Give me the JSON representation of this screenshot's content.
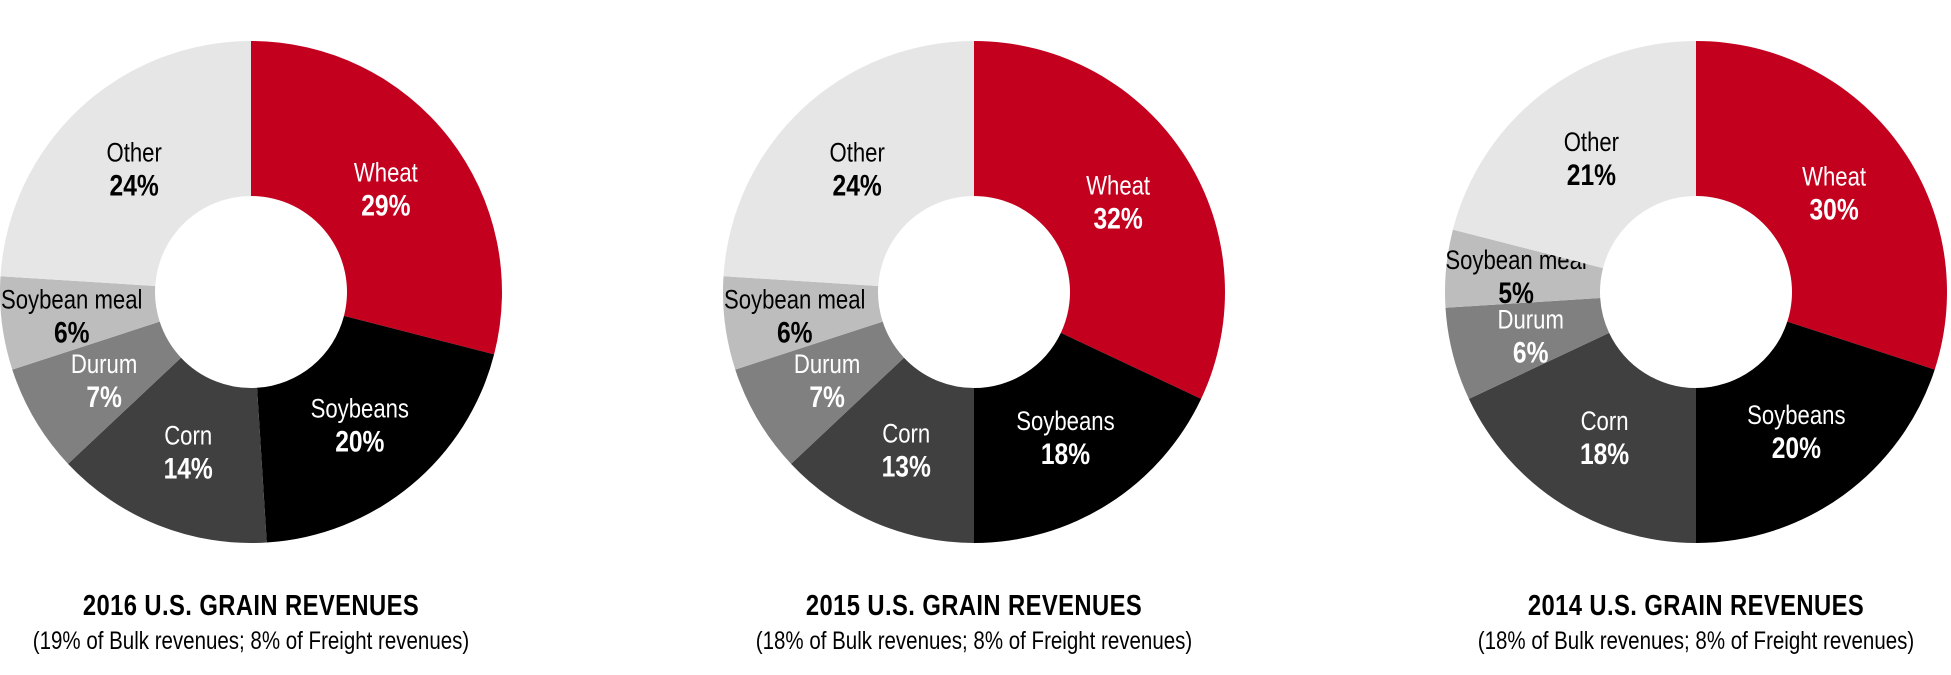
{
  "chart_data": [
    {
      "type": "pie",
      "donut": true,
      "title": "2016 U.S. GRAIN REVENUES",
      "subtitle": "(19% of Bulk revenues; 8% of Freight revenues)",
      "categories": [
        "Wheat",
        "Soybeans",
        "Corn",
        "Durum",
        "Soybean meal",
        "Other"
      ],
      "values": [
        29,
        20,
        14,
        7,
        6,
        24
      ],
      "labels": [
        "29%",
        "20%",
        "14%",
        "7%",
        "6%",
        "24%"
      ]
    },
    {
      "type": "pie",
      "donut": true,
      "title": "2015 U.S. GRAIN REVENUES",
      "subtitle": "(18% of Bulk revenues; 8% of Freight revenues)",
      "categories": [
        "Wheat",
        "Soybeans",
        "Corn",
        "Durum",
        "Soybean meal",
        "Other"
      ],
      "values": [
        32,
        18,
        13,
        7,
        6,
        24
      ],
      "labels": [
        "32%",
        "18%",
        "13%",
        "7%",
        "6%",
        "24%"
      ]
    },
    {
      "type": "pie",
      "donut": true,
      "title": "2014 U.S. GRAIN REVENUES",
      "subtitle": "(18% of Bulk revenues; 8% of Freight revenues)",
      "categories": [
        "Wheat",
        "Soybeans",
        "Corn",
        "Durum",
        "Soybean meal",
        "Other"
      ],
      "values": [
        30,
        20,
        18,
        6,
        5,
        21
      ],
      "labels": [
        "30%",
        "20%",
        "18%",
        "6%",
        "5%",
        "21%"
      ]
    }
  ],
  "colors": {
    "Wheat": "#c4001f",
    "Soybeans": "#000000",
    "Corn": "#404040",
    "Durum": "#808080",
    "Soybean meal": "#bdbdbd",
    "Other": "#e6e6e6"
  },
  "label_colors": {
    "Wheat": "#ffffff",
    "Soybeans": "#ffffff",
    "Corn": "#ffffff",
    "Durum": "#ffffff",
    "Soybean meal": "#000000",
    "Other": "#000000"
  }
}
